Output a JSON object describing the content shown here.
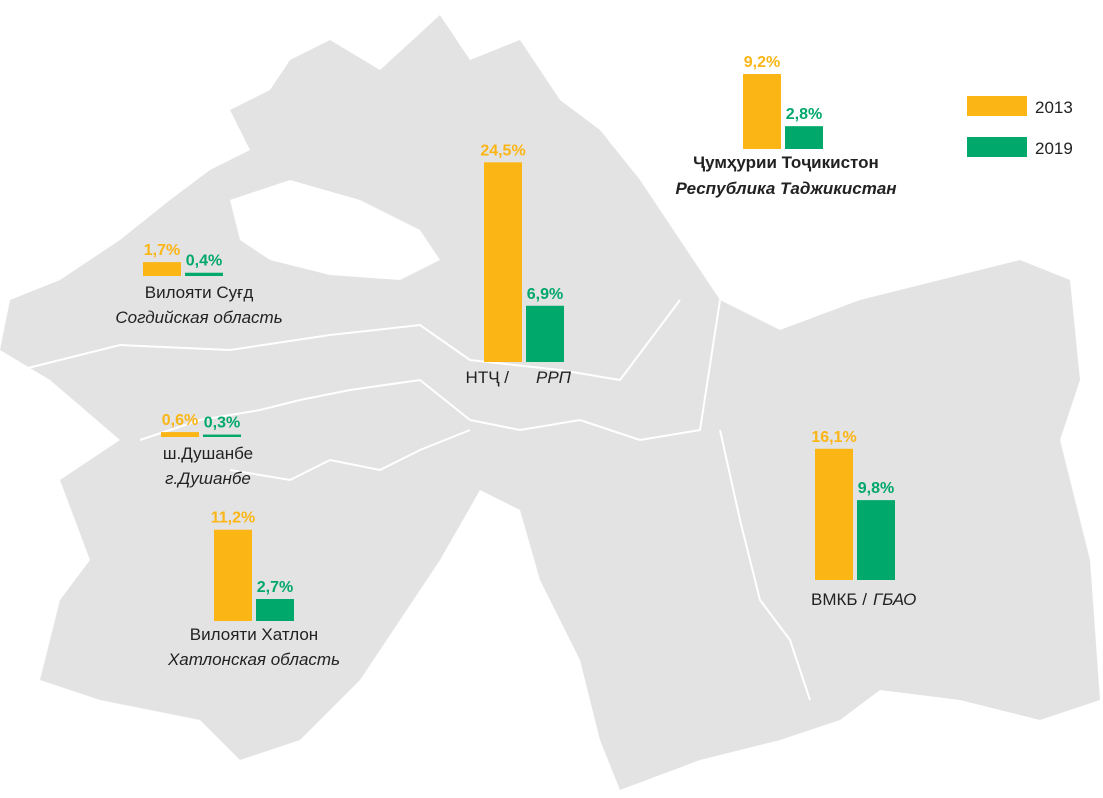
{
  "legend": [
    {
      "name": "2013",
      "color": "#fbb515"
    },
    {
      "name": "2019",
      "color": "#00a86b"
    }
  ],
  "regions": [
    {
      "name_tj": "Вилояти Суғд",
      "name_ru": "Согдийская область",
      "values": [
        1.7,
        0.4
      ],
      "value_labels": [
        "1,7%",
        "0,4%"
      ]
    },
    {
      "name_tj": "ш.Душанбе",
      "name_ru": "г.Душанбе",
      "values": [
        0.6,
        0.3
      ],
      "value_labels": [
        "0,6%",
        "0,3%"
      ]
    },
    {
      "name_tj": "Вилояти Хатлон",
      "name_ru": "Хатлонская область",
      "values": [
        11.2,
        2.7
      ],
      "value_labels": [
        "11,2%",
        "2,7%"
      ]
    },
    {
      "name_tj": "НТҶ /",
      "name_ru": "РРП",
      "values": [
        24.5,
        6.9
      ],
      "value_labels": [
        "24,5%",
        "6,9%"
      ]
    },
    {
      "name_tj": "ВМКБ /",
      "name_ru": "ГБАО",
      "values": [
        16.1,
        9.8
      ],
      "value_labels": [
        "16,1%",
        "9,8%"
      ]
    },
    {
      "name_tj": "Ҷумҳурии Тоҷикистон",
      "name_ru": "Республика Таджикистан",
      "values": [
        9.2,
        2.8
      ],
      "value_labels": [
        "9,2%",
        "2,8%"
      ]
    }
  ]
}
